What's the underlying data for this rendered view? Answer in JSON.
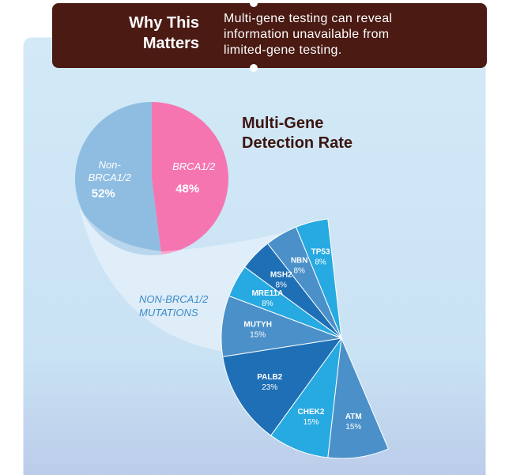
{
  "header": {
    "title": "Why This Matters",
    "text": "Multi-gene testing can reveal information unavailable from limited-gene testing."
  },
  "chart_data": [
    {
      "type": "pie",
      "title": "Multi-Gene Detection Rate",
      "categories": [
        "Non-BRCA1/2",
        "BRCA1/2"
      ],
      "values": [
        52,
        48
      ],
      "value_labels": [
        "52%",
        "48%"
      ],
      "colors": [
        "#8fbde2",
        "#f575b1"
      ]
    },
    {
      "type": "pie",
      "title": "NON-BRCA1/2 MUTATIONS",
      "categories": [
        "TP53",
        "NBN",
        "MSH2",
        "MRE11A",
        "MUTYH",
        "PALB2",
        "CHEK2",
        "ATM"
      ],
      "values": [
        8,
        8,
        8,
        8,
        15,
        23,
        15,
        15
      ],
      "value_labels": [
        "8%",
        "8%",
        "8%",
        "8%",
        "15%",
        "23%",
        "15%",
        "15%"
      ],
      "colors": [
        "#27a9e1",
        "#4b90c9",
        "#1f6fb6",
        "#27a9e1",
        "#4b90c9",
        "#1f6fb6",
        "#27a9e1",
        "#4b90c9"
      ]
    }
  ]
}
